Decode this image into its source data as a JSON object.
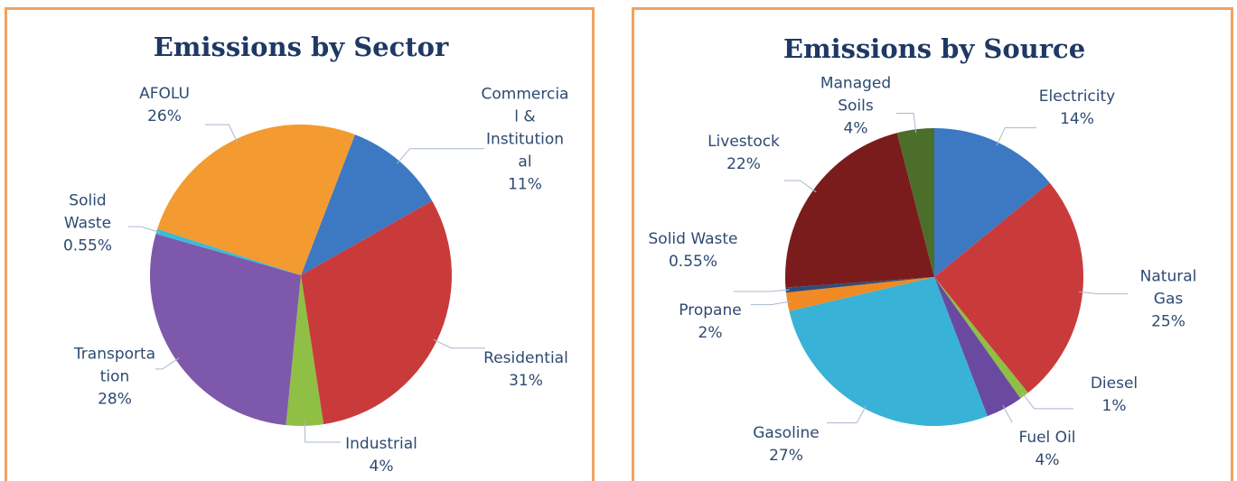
{
  "chart_data": [
    {
      "type": "pie",
      "title": "Emissions by Sector",
      "categories": [
        "Commercia\nl &\nInstitution\nal",
        "Residential",
        "Industrial",
        "Transporta\ntion",
        "Solid\nWaste",
        "AFOLU"
      ],
      "values": [
        11,
        31,
        4,
        28,
        0.55,
        26
      ],
      "value_labels": [
        "11%",
        "31%",
        "4%",
        "28%",
        "0.55%",
        "26%"
      ],
      "colors": [
        "#3d78c3",
        "#c93b3b",
        "#8fbf45",
        "#7e58ab",
        "#3db8d8",
        "#f39a30"
      ]
    },
    {
      "type": "pie",
      "title": "Emissions by Source",
      "categories": [
        "Electricity",
        "Natural Gas",
        "Diesel",
        "Fuel Oil",
        "Gasoline",
        "Propane",
        "Solid Waste",
        "Livestock",
        "Managed\nSoils"
      ],
      "values": [
        14,
        25,
        1,
        4,
        27,
        2,
        0.55,
        22,
        4
      ],
      "value_labels": [
        "14%",
        "25%",
        "1%",
        "4%",
        "27%",
        "2%",
        "0.55%",
        "22%",
        "4%"
      ],
      "colors": [
        "#3d78c3",
        "#c93b3b",
        "#8fbf45",
        "#6a4aa0",
        "#38b2d6",
        "#f08a24",
        "#2f4d7a",
        "#7a1c1c",
        "#4b6e2b"
      ]
    }
  ]
}
